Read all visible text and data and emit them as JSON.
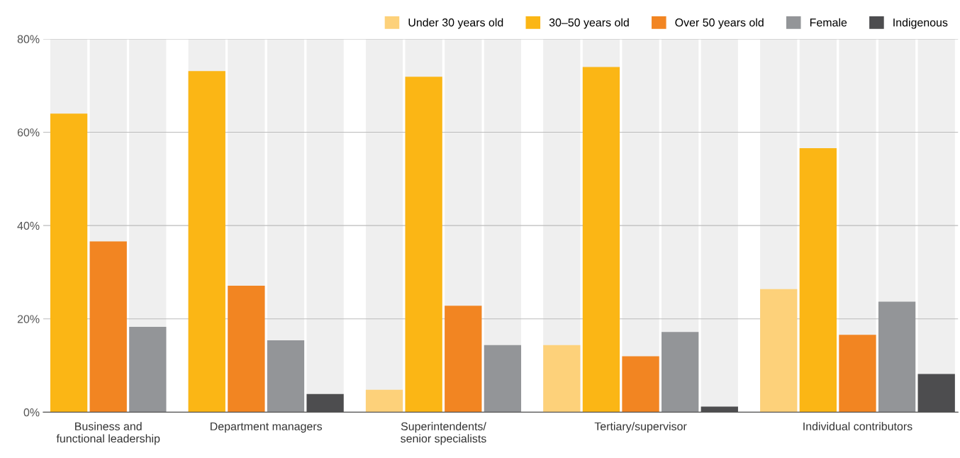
{
  "chart_data": {
    "type": "bar",
    "categories": [
      "Business and\nfunctional leadership",
      "Department managers",
      "Superintendents/\nsenior specialists",
      "Tertiary/supervisor",
      "Individual contributors"
    ],
    "series": [
      {
        "name": "Under 30 years old",
        "color": "#fdd17a",
        "values": [
          null,
          null,
          4.8,
          14.4,
          26.4
        ]
      },
      {
        "name": "30–50 years old",
        "color": "#fbb615",
        "values": [
          64,
          73.1,
          71.9,
          74.0,
          56.6
        ]
      },
      {
        "name": "Over 50 years old",
        "color": "#f28522",
        "values": [
          36.6,
          27.1,
          22.8,
          12.0,
          16.6
        ]
      },
      {
        "name": "Female",
        "color": "#939598",
        "values": [
          18.3,
          15.4,
          14.4,
          17.2,
          23.7
        ]
      },
      {
        "name": "Indigenous",
        "color": "#4d4d4f",
        "values": [
          null,
          3.9,
          null,
          1.2,
          8.2
        ]
      }
    ],
    "ylim": [
      0,
      80
    ],
    "yticks": [
      {
        "value": 0,
        "label": "0%"
      },
      {
        "value": 20,
        "label": "20%"
      },
      {
        "value": 40,
        "label": "40%"
      },
      {
        "value": 60,
        "label": "60%"
      },
      {
        "value": 80,
        "label": "80%"
      }
    ],
    "grid": "y",
    "legend": "top right"
  }
}
